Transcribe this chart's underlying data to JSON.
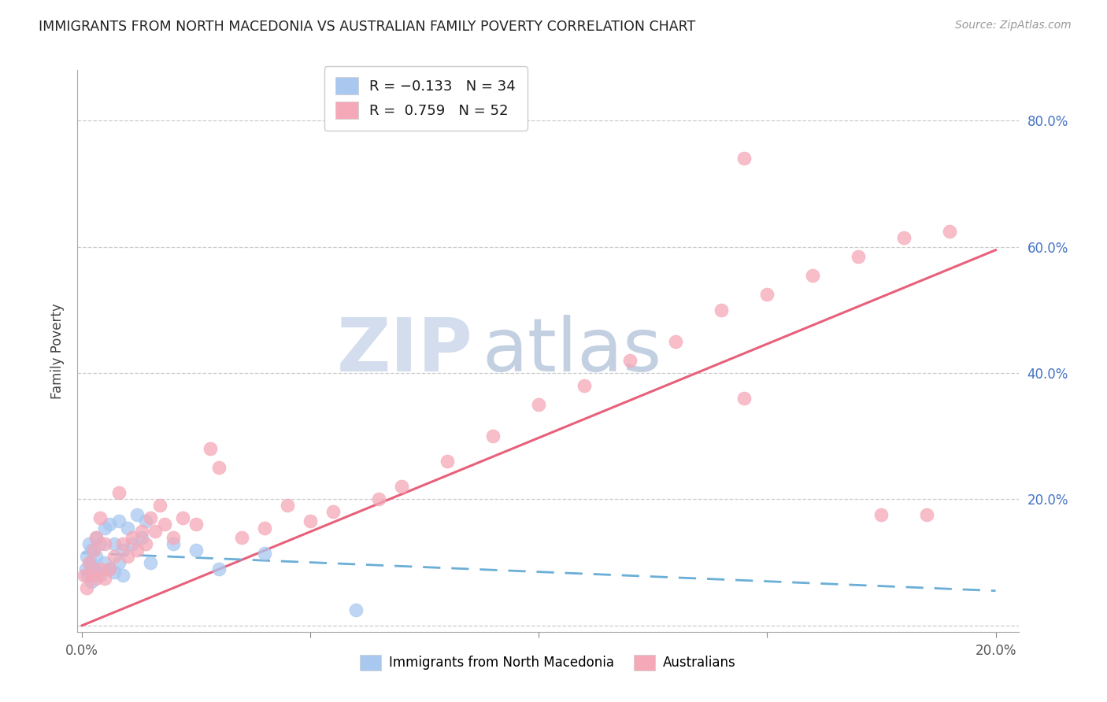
{
  "title": "IMMIGRANTS FROM NORTH MACEDONIA VS AUSTRALIAN FAMILY POVERTY CORRELATION CHART",
  "source": "Source: ZipAtlas.com",
  "ylabel": "Family Poverty",
  "xlim_min": -0.001,
  "xlim_max": 0.205,
  "ylim_min": -0.01,
  "ylim_max": 0.88,
  "R1": -0.133,
  "N1": 34,
  "R2": 0.759,
  "N2": 52,
  "series1_color": "#a8c8f0",
  "series2_color": "#f5a8b8",
  "trendline1_color": "#6baed6",
  "trendline2_color": "#e8607a",
  "legend_label1": "Immigrants from North Macedonia",
  "legend_label2": "Australians",
  "watermark_zip": "ZIP",
  "watermark_atlas": "atlas",
  "watermark_color_zip": "#c8d8ec",
  "watermark_color_atlas": "#b8c8dc",
  "blue_x": [
    0.0008,
    0.001,
    0.0012,
    0.0015,
    0.0018,
    0.002,
    0.002,
    0.0025,
    0.003,
    0.003,
    0.003,
    0.004,
    0.004,
    0.005,
    0.005,
    0.006,
    0.006,
    0.007,
    0.007,
    0.008,
    0.008,
    0.009,
    0.009,
    0.01,
    0.011,
    0.012,
    0.013,
    0.014,
    0.015,
    0.02,
    0.025,
    0.03,
    0.04,
    0.06
  ],
  "blue_y": [
    0.09,
    0.11,
    0.08,
    0.13,
    0.1,
    0.07,
    0.12,
    0.09,
    0.085,
    0.11,
    0.14,
    0.08,
    0.13,
    0.1,
    0.155,
    0.09,
    0.16,
    0.085,
    0.13,
    0.1,
    0.165,
    0.12,
    0.08,
    0.155,
    0.13,
    0.175,
    0.14,
    0.165,
    0.1,
    0.13,
    0.12,
    0.09,
    0.115,
    0.025
  ],
  "pink_x": [
    0.0005,
    0.001,
    0.0015,
    0.002,
    0.0025,
    0.003,
    0.003,
    0.004,
    0.004,
    0.005,
    0.005,
    0.006,
    0.007,
    0.008,
    0.009,
    0.01,
    0.011,
    0.012,
    0.013,
    0.014,
    0.015,
    0.016,
    0.017,
    0.018,
    0.02,
    0.022,
    0.025,
    0.028,
    0.03,
    0.035,
    0.04,
    0.045,
    0.05,
    0.055,
    0.065,
    0.07,
    0.08,
    0.09,
    0.1,
    0.11,
    0.12,
    0.13,
    0.14,
    0.145,
    0.15,
    0.16,
    0.17,
    0.175,
    0.18,
    0.185,
    0.19,
    0.145
  ],
  "pink_y": [
    0.08,
    0.06,
    0.1,
    0.08,
    0.12,
    0.075,
    0.14,
    0.09,
    0.17,
    0.075,
    0.13,
    0.09,
    0.11,
    0.21,
    0.13,
    0.11,
    0.14,
    0.12,
    0.15,
    0.13,
    0.17,
    0.15,
    0.19,
    0.16,
    0.14,
    0.17,
    0.16,
    0.28,
    0.25,
    0.14,
    0.155,
    0.19,
    0.165,
    0.18,
    0.2,
    0.22,
    0.26,
    0.3,
    0.35,
    0.38,
    0.42,
    0.45,
    0.5,
    0.36,
    0.525,
    0.555,
    0.585,
    0.175,
    0.615,
    0.175,
    0.625,
    0.74
  ],
  "pink_trend_x0": 0.0,
  "pink_trend_y0": 0.0,
  "pink_trend_x1": 0.2,
  "pink_trend_y1": 0.595,
  "blue_trend_x0": 0.0,
  "blue_trend_y0": 0.115,
  "blue_trend_x1": 0.2,
  "blue_trend_y1": 0.055
}
